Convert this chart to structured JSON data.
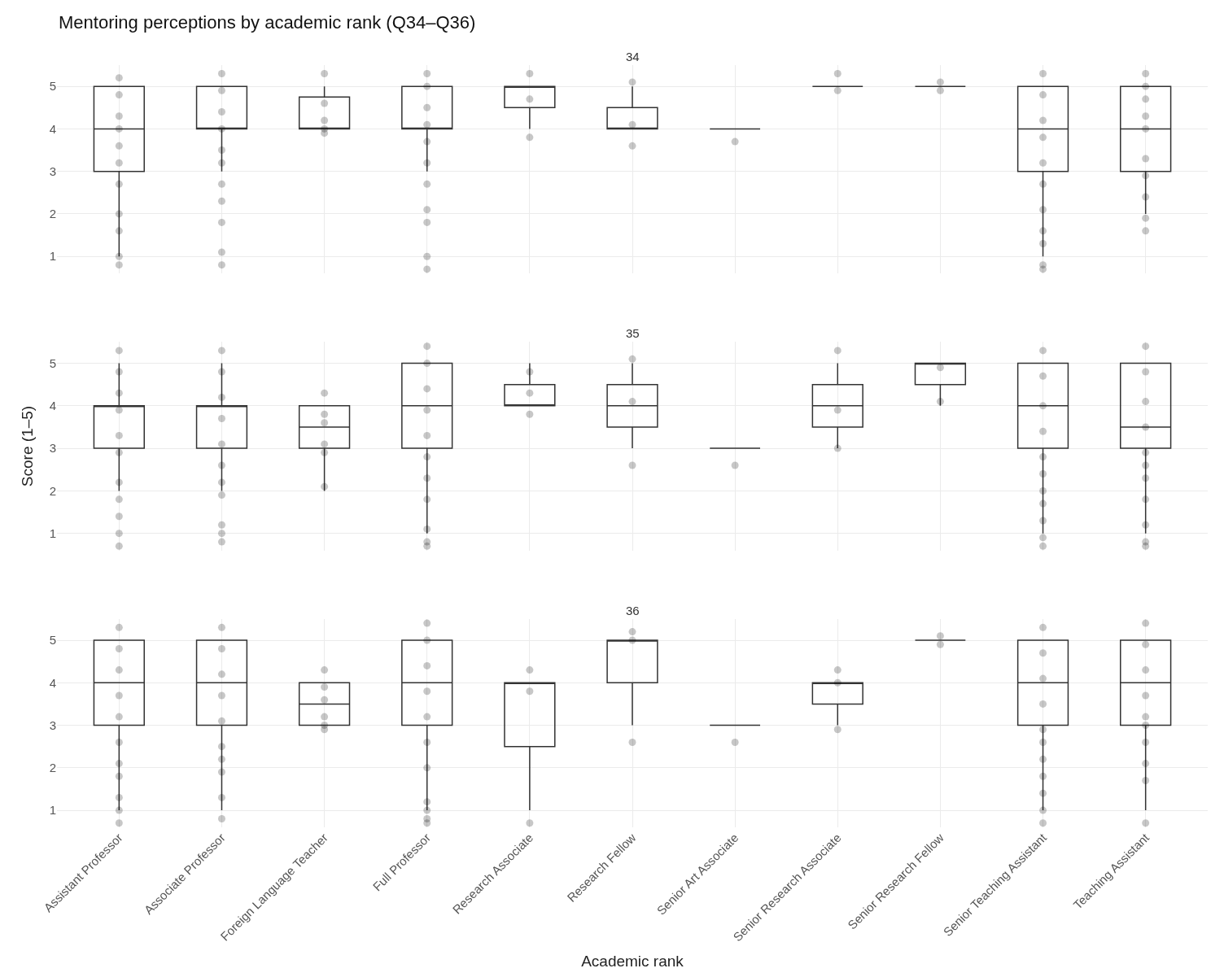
{
  "chart_data": [
    {
      "type": "box",
      "title": "34",
      "annotations": [
        "Mentoring perceptions by academic rank (Q34–Q36)"
      ],
      "categories": [
        "Assistant Professor",
        "Associate Professor",
        "Foreign Language Teacher",
        "Full Professor",
        "Research Associate",
        "Research Fellow",
        "Senior Art Associate",
        "Senior Research Associate",
        "Senior Research Fellow",
        "Senior Teaching Assistant",
        "Teaching Assistant"
      ],
      "ylim": [
        0.6,
        5.5
      ],
      "yticks": [
        1,
        2,
        3,
        4,
        5
      ],
      "grid": true,
      "tick_labels": "y",
      "marker": "circle",
      "series": [
        {
          "color": "#333333",
          "boxes": [
            {
              "low": 1,
              "q1": 3,
              "median": 4,
              "q3": 5,
              "high": 5
            },
            {
              "low": 3,
              "q1": 4,
              "median": 4,
              "q3": 5,
              "high": 5
            },
            {
              "low": 4,
              "q1": 4,
              "median": 4,
              "q3": 4.75,
              "high": 5
            },
            {
              "low": 3,
              "q1": 4,
              "median": 4,
              "q3": 5,
              "high": 5
            },
            {
              "low": 4,
              "q1": 4.5,
              "median": 5,
              "q3": 5,
              "high": 5
            },
            {
              "low": 4,
              "q1": 4,
              "median": 4,
              "q3": 4.5,
              "high": 5
            },
            {
              "low": 4,
              "q1": 4,
              "median": 4,
              "q3": 4,
              "high": 4
            },
            {
              "low": 5,
              "q1": 5,
              "median": 5,
              "q3": 5,
              "high": 5
            },
            {
              "low": 5,
              "q1": 5,
              "median": 5,
              "q3": 5,
              "high": 5
            },
            {
              "low": 1,
              "q1": 3,
              "median": 4,
              "q3": 5,
              "high": 5
            },
            {
              "low": 2,
              "q1": 3,
              "median": 4,
              "q3": 5,
              "high": 5
            }
          ]
        },
        {
          "type": "scatter",
          "color": "#000000",
          "x": [
            "Assistant Professor",
            "Assistant Professor",
            "Assistant Professor",
            "Assistant Professor",
            "Assistant Professor",
            "Assistant Professor",
            "Assistant Professor",
            "Assistant Professor",
            "Assistant Professor",
            "Assistant Professor",
            "Assistant Professor"
          ],
          "values": [
            5.2,
            4.8,
            4.3,
            4.0,
            3.6,
            3.2,
            2.7,
            2.0,
            1.6,
            1.0,
            0.8
          ]
        },
        {
          "type": "scatter",
          "color": "#000000",
          "x": [
            "Associate Professor",
            "Associate Professor",
            "Associate Professor",
            "Associate Professor",
            "Associate Professor",
            "Associate Professor",
            "Associate Professor",
            "Associate Professor",
            "Associate Professor",
            "Associate Professor",
            "Associate Professor"
          ],
          "values": [
            5.3,
            4.9,
            4.4,
            4.0,
            3.5,
            3.2,
            2.7,
            2.3,
            1.8,
            1.1,
            0.8
          ]
        },
        {
          "type": "scatter",
          "color": "#000000",
          "x": [
            "Foreign Language Teacher",
            "Foreign Language Teacher",
            "Foreign Language Teacher",
            "Foreign Language Teacher",
            "Foreign Language Teacher"
          ],
          "values": [
            5.3,
            4.6,
            4.2,
            4.0,
            3.9
          ]
        },
        {
          "type": "scatter",
          "color": "#000000",
          "x": [
            "Full Professor",
            "Full Professor",
            "Full Professor",
            "Full Professor",
            "Full Professor",
            "Full Professor",
            "Full Professor",
            "Full Professor",
            "Full Professor",
            "Full Professor",
            "Full Professor"
          ],
          "values": [
            5.3,
            5.0,
            4.5,
            4.1,
            3.7,
            3.2,
            2.7,
            2.1,
            1.8,
            1.0,
            0.7
          ]
        },
        {
          "type": "scatter",
          "color": "#000000",
          "x": [
            "Research Associate",
            "Research Associate",
            "Research Associate"
          ],
          "values": [
            5.3,
            4.7,
            3.8
          ]
        },
        {
          "type": "scatter",
          "color": "#000000",
          "x": [
            "Research Fellow",
            "Research Fellow",
            "Research Fellow"
          ],
          "values": [
            5.1,
            4.1,
            3.6
          ]
        },
        {
          "type": "scatter",
          "color": "#000000",
          "x": [
            "Senior Art Associate"
          ],
          "values": [
            3.7
          ]
        },
        {
          "type": "scatter",
          "color": "#000000",
          "x": [
            "Senior Research Associate",
            "Senior Research Associate"
          ],
          "values": [
            5.3,
            4.9
          ]
        },
        {
          "type": "scatter",
          "color": "#000000",
          "x": [
            "Senior Research Fellow",
            "Senior Research Fellow"
          ],
          "values": [
            5.1,
            4.9
          ]
        },
        {
          "type": "scatter",
          "color": "#000000",
          "x": [
            "Senior Teaching Assistant",
            "Senior Teaching Assistant",
            "Senior Teaching Assistant",
            "Senior Teaching Assistant",
            "Senior Teaching Assistant",
            "Senior Teaching Assistant",
            "Senior Teaching Assistant",
            "Senior Teaching Assistant",
            "Senior Teaching Assistant",
            "Senior Teaching Assistant",
            "Senior Teaching Assistant"
          ],
          "values": [
            5.3,
            4.8,
            4.2,
            3.8,
            3.2,
            2.7,
            2.1,
            1.6,
            1.3,
            0.8,
            0.7
          ]
        },
        {
          "type": "scatter",
          "color": "#000000",
          "x": [
            "Teaching Assistant",
            "Teaching Assistant",
            "Teaching Assistant",
            "Teaching Assistant",
            "Teaching Assistant",
            "Teaching Assistant",
            "Teaching Assistant",
            "Teaching Assistant",
            "Teaching Assistant",
            "Teaching Assistant"
          ],
          "values": [
            5.3,
            5.0,
            4.7,
            4.3,
            4.0,
            3.3,
            2.9,
            2.4,
            1.9,
            1.6
          ]
        }
      ]
    },
    {
      "type": "box",
      "title": "35",
      "ylabel": "Score (1–5)",
      "categories": [
        "Assistant Professor",
        "Associate Professor",
        "Foreign Language Teacher",
        "Full Professor",
        "Research Associate",
        "Research Fellow",
        "Senior Art Associate",
        "Senior Research Associate",
        "Senior Research Fellow",
        "Senior Teaching Assistant",
        "Teaching Assistant"
      ],
      "ylim": [
        0.6,
        5.5
      ],
      "yticks": [
        1,
        2,
        3,
        4,
        5
      ],
      "grid": true,
      "tick_labels": "y",
      "marker": "circle",
      "series": [
        {
          "color": "#333333",
          "boxes": [
            {
              "low": 2,
              "q1": 3,
              "median": 4,
              "q3": 4,
              "high": 5
            },
            {
              "low": 2,
              "q1": 3,
              "median": 4,
              "q3": 4,
              "high": 5
            },
            {
              "low": 2,
              "q1": 3,
              "median": 3.5,
              "q3": 4,
              "high": 4
            },
            {
              "low": 1,
              "q1": 3,
              "median": 4,
              "q3": 5,
              "high": 5
            },
            {
              "low": 4,
              "q1": 4,
              "median": 4,
              "q3": 4.5,
              "high": 5
            },
            {
              "low": 3,
              "q1": 3.5,
              "median": 4,
              "q3": 4.5,
              "high": 5
            },
            {
              "low": 3,
              "q1": 3,
              "median": 3,
              "q3": 3,
              "high": 3
            },
            {
              "low": 3,
              "q1": 3.5,
              "median": 4,
              "q3": 4.5,
              "high": 5
            },
            {
              "low": 4,
              "q1": 4.5,
              "median": 5,
              "q3": 5,
              "high": 5
            },
            {
              "low": 1,
              "q1": 3,
              "median": 4,
              "q3": 5,
              "high": 5
            },
            {
              "low": 1,
              "q1": 3,
              "median": 3.5,
              "q3": 5,
              "high": 5
            }
          ]
        },
        {
          "type": "scatter",
          "color": "#000000",
          "x": [
            "Assistant Professor",
            "Assistant Professor",
            "Assistant Professor",
            "Assistant Professor",
            "Assistant Professor",
            "Assistant Professor",
            "Assistant Professor",
            "Assistant Professor",
            "Assistant Professor",
            "Assistant Professor",
            "Assistant Professor"
          ],
          "values": [
            5.3,
            4.8,
            4.3,
            3.9,
            3.3,
            2.9,
            2.2,
            1.8,
            1.4,
            1.0,
            0.7
          ]
        },
        {
          "type": "scatter",
          "color": "#000000",
          "x": [
            "Associate Professor",
            "Associate Professor",
            "Associate Professor",
            "Associate Professor",
            "Associate Professor",
            "Associate Professor",
            "Associate Professor",
            "Associate Professor",
            "Associate Professor",
            "Associate Professor",
            "Associate Professor"
          ],
          "values": [
            5.3,
            4.8,
            4.2,
            3.7,
            3.1,
            2.6,
            2.2,
            1.9,
            1.2,
            1.0,
            0.8
          ]
        },
        {
          "type": "scatter",
          "color": "#000000",
          "x": [
            "Foreign Language Teacher",
            "Foreign Language Teacher",
            "Foreign Language Teacher",
            "Foreign Language Teacher",
            "Foreign Language Teacher",
            "Foreign Language Teacher"
          ],
          "values": [
            4.3,
            3.8,
            3.6,
            3.1,
            2.9,
            2.1
          ]
        },
        {
          "type": "scatter",
          "color": "#000000",
          "x": [
            "Full Professor",
            "Full Professor",
            "Full Professor",
            "Full Professor",
            "Full Professor",
            "Full Professor",
            "Full Professor",
            "Full Professor",
            "Full Professor",
            "Full Professor",
            "Full Professor"
          ],
          "values": [
            5.4,
            5.0,
            4.4,
            3.9,
            3.3,
            2.8,
            2.3,
            1.8,
            1.1,
            0.8,
            0.7
          ]
        },
        {
          "type": "scatter",
          "color": "#000000",
          "x": [
            "Research Associate",
            "Research Associate",
            "Research Associate"
          ],
          "values": [
            4.8,
            4.3,
            3.8
          ]
        },
        {
          "type": "scatter",
          "color": "#000000",
          "x": [
            "Research Fellow",
            "Research Fellow",
            "Research Fellow"
          ],
          "values": [
            5.1,
            4.1,
            2.6
          ]
        },
        {
          "type": "scatter",
          "color": "#000000",
          "x": [
            "Senior Art Associate"
          ],
          "values": [
            2.6
          ]
        },
        {
          "type": "scatter",
          "color": "#000000",
          "x": [
            "Senior Research Associate",
            "Senior Research Associate",
            "Senior Research Associate"
          ],
          "values": [
            5.3,
            3.9,
            3.0
          ]
        },
        {
          "type": "scatter",
          "color": "#000000",
          "x": [
            "Senior Research Fellow",
            "Senior Research Fellow"
          ],
          "values": [
            4.9,
            4.1
          ]
        },
        {
          "type": "scatter",
          "color": "#000000",
          "x": [
            "Senior Teaching Assistant",
            "Senior Teaching Assistant",
            "Senior Teaching Assistant",
            "Senior Teaching Assistant",
            "Senior Teaching Assistant",
            "Senior Teaching Assistant",
            "Senior Teaching Assistant",
            "Senior Teaching Assistant",
            "Senior Teaching Assistant",
            "Senior Teaching Assistant",
            "Senior Teaching Assistant"
          ],
          "values": [
            5.3,
            4.7,
            4.0,
            3.4,
            2.8,
            2.4,
            2.0,
            1.7,
            1.3,
            0.9,
            0.7
          ]
        },
        {
          "type": "scatter",
          "color": "#000000",
          "x": [
            "Teaching Assistant",
            "Teaching Assistant",
            "Teaching Assistant",
            "Teaching Assistant",
            "Teaching Assistant",
            "Teaching Assistant",
            "Teaching Assistant",
            "Teaching Assistant",
            "Teaching Assistant",
            "Teaching Assistant",
            "Teaching Assistant"
          ],
          "values": [
            5.4,
            4.8,
            4.1,
            3.5,
            2.9,
            2.6,
            2.3,
            1.8,
            1.2,
            0.8,
            0.7
          ]
        }
      ]
    },
    {
      "type": "box",
      "title": "36",
      "xlabel": "Academic rank",
      "categories": [
        "Assistant Professor",
        "Associate Professor",
        "Foreign Language Teacher",
        "Full Professor",
        "Research Associate",
        "Research Fellow",
        "Senior Art Associate",
        "Senior Research Associate",
        "Senior Research Fellow",
        "Senior Teaching Assistant",
        "Teaching Assistant"
      ],
      "ylim": [
        0.6,
        5.5
      ],
      "yticks": [
        1,
        2,
        3,
        4,
        5
      ],
      "grid": true,
      "marker": "circle",
      "series": [
        {
          "color": "#333333",
          "boxes": [
            {
              "low": 1,
              "q1": 3,
              "median": 4,
              "q3": 5,
              "high": 5
            },
            {
              "low": 1,
              "q1": 3,
              "median": 4,
              "q3": 5,
              "high": 5
            },
            {
              "low": 3,
              "q1": 3,
              "median": 3.5,
              "q3": 4,
              "high": 4
            },
            {
              "low": 1,
              "q1": 3,
              "median": 4,
              "q3": 5,
              "high": 5
            },
            {
              "low": 1,
              "q1": 2.5,
              "median": 4,
              "q3": 4,
              "high": 4
            },
            {
              "low": 3,
              "q1": 4,
              "median": 5,
              "q3": 5,
              "high": 5
            },
            {
              "low": 3,
              "q1": 3,
              "median": 3,
              "q3": 3,
              "high": 3
            },
            {
              "low": 3,
              "q1": 3.5,
              "median": 4,
              "q3": 4,
              "high": 4
            },
            {
              "low": 5,
              "q1": 5,
              "median": 5,
              "q3": 5,
              "high": 5
            },
            {
              "low": 1,
              "q1": 3,
              "median": 4,
              "q3": 5,
              "high": 5
            },
            {
              "low": 1,
              "q1": 3,
              "median": 4,
              "q3": 5,
              "high": 5
            }
          ]
        },
        {
          "type": "scatter",
          "color": "#000000",
          "x": [
            "Assistant Professor",
            "Assistant Professor",
            "Assistant Professor",
            "Assistant Professor",
            "Assistant Professor",
            "Assistant Professor",
            "Assistant Professor",
            "Assistant Professor",
            "Assistant Professor",
            "Assistant Professor",
            "Assistant Professor"
          ],
          "values": [
            5.3,
            4.8,
            4.3,
            3.7,
            3.2,
            2.6,
            2.1,
            1.8,
            1.3,
            1.0,
            0.7
          ]
        },
        {
          "type": "scatter",
          "color": "#000000",
          "x": [
            "Associate Professor",
            "Associate Professor",
            "Associate Professor",
            "Associate Professor",
            "Associate Professor",
            "Associate Professor",
            "Associate Professor",
            "Associate Professor",
            "Associate Professor",
            "Associate Professor"
          ],
          "values": [
            5.3,
            4.8,
            4.2,
            3.7,
            3.1,
            2.5,
            2.2,
            1.9,
            1.3,
            0.8
          ]
        },
        {
          "type": "scatter",
          "color": "#000000",
          "x": [
            "Foreign Language Teacher",
            "Foreign Language Teacher",
            "Foreign Language Teacher",
            "Foreign Language Teacher",
            "Foreign Language Teacher",
            "Foreign Language Teacher"
          ],
          "values": [
            4.3,
            3.9,
            3.6,
            3.2,
            3.0,
            2.9
          ]
        },
        {
          "type": "scatter",
          "color": "#000000",
          "x": [
            "Full Professor",
            "Full Professor",
            "Full Professor",
            "Full Professor",
            "Full Professor",
            "Full Professor",
            "Full Professor",
            "Full Professor",
            "Full Professor",
            "Full Professor",
            "Full Professor"
          ],
          "values": [
            5.4,
            5.0,
            4.4,
            3.8,
            3.2,
            2.6,
            2.0,
            1.2,
            1.0,
            0.8,
            0.7
          ]
        },
        {
          "type": "scatter",
          "color": "#000000",
          "x": [
            "Research Associate",
            "Research Associate",
            "Research Associate"
          ],
          "values": [
            4.3,
            3.8,
            0.7
          ]
        },
        {
          "type": "scatter",
          "color": "#000000",
          "x": [
            "Research Fellow",
            "Research Fellow",
            "Research Fellow"
          ],
          "values": [
            5.2,
            5.0,
            2.6
          ]
        },
        {
          "type": "scatter",
          "color": "#000000",
          "x": [
            "Senior Art Associate"
          ],
          "values": [
            2.6
          ]
        },
        {
          "type": "scatter",
          "color": "#000000",
          "x": [
            "Senior Research Associate",
            "Senior Research Associate",
            "Senior Research Associate"
          ],
          "values": [
            4.3,
            4.0,
            2.9
          ]
        },
        {
          "type": "scatter",
          "color": "#000000",
          "x": [
            "Senior Research Fellow",
            "Senior Research Fellow"
          ],
          "values": [
            5.1,
            4.9
          ]
        },
        {
          "type": "scatter",
          "color": "#000000",
          "x": [
            "Senior Teaching Assistant",
            "Senior Teaching Assistant",
            "Senior Teaching Assistant",
            "Senior Teaching Assistant",
            "Senior Teaching Assistant",
            "Senior Teaching Assistant",
            "Senior Teaching Assistant",
            "Senior Teaching Assistant",
            "Senior Teaching Assistant",
            "Senior Teaching Assistant",
            "Senior Teaching Assistant"
          ],
          "values": [
            5.3,
            4.7,
            4.1,
            3.5,
            2.9,
            2.6,
            2.2,
            1.8,
            1.4,
            1.0,
            0.7
          ]
        },
        {
          "type": "scatter",
          "color": "#000000",
          "x": [
            "Teaching Assistant",
            "Teaching Assistant",
            "Teaching Assistant",
            "Teaching Assistant",
            "Teaching Assistant",
            "Teaching Assistant",
            "Teaching Assistant",
            "Teaching Assistant",
            "Teaching Assistant",
            "Teaching Assistant"
          ],
          "values": [
            5.4,
            4.9,
            4.3,
            3.7,
            3.2,
            3.0,
            2.6,
            2.1,
            1.7,
            0.7
          ]
        }
      ]
    }
  ]
}
